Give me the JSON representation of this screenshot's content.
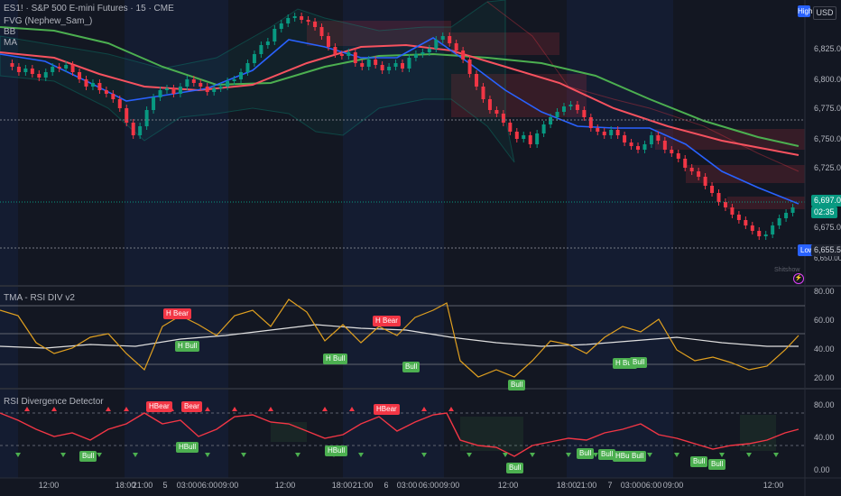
{
  "header": {
    "symbol_line": "ES1! · S&P 500 E-mini Futures · 15 · CME",
    "indicator_1": "FVG (Nephew_Sam_)",
    "indicator_2": "BB",
    "indicator_3": "MA",
    "high_badge": "High",
    "currency_button": "USD"
  },
  "price_axis": {
    "ticks": [
      "6,825.00",
      "6,800.00",
      "6,775.00",
      "6,750.00",
      "6,725.00",
      "6,675.00"
    ],
    "last_price": "6,697.00",
    "countdown": "02:35",
    "low_label": "Low",
    "low_price": "6,655.50",
    "bottom_tick": "6,650.00",
    "last_price_color": "#089981",
    "low_badge_color": "#2962ff"
  },
  "pane_rsi_div": {
    "title": "TMA - RSI DIV v2",
    "ticks": [
      "80.00",
      "60.00",
      "40.00",
      "20.00"
    ],
    "signals": [
      {
        "text": "H Bear",
        "type": "bear"
      },
      {
        "text": "H Bull",
        "type": "bull"
      },
      {
        "text": "H Bear",
        "type": "bear"
      },
      {
        "text": "H Bull",
        "type": "bull"
      },
      {
        "text": "Bull",
        "type": "bull"
      },
      {
        "text": "Bull",
        "type": "bull"
      },
      {
        "text": "H Bull",
        "type": "bull"
      },
      {
        "text": "Bull",
        "type": "bull"
      }
    ]
  },
  "pane_detector": {
    "title": "RSI Divergence Detector",
    "ticks": [
      "80.00",
      "40.00",
      "0.00"
    ],
    "signals": [
      {
        "text": "HBear",
        "type": "bear"
      },
      {
        "text": "Bear",
        "type": "bear"
      },
      {
        "text": "HBear",
        "type": "bear"
      },
      {
        "text": "Bull",
        "type": "bull"
      },
      {
        "text": "HBull",
        "type": "bull"
      },
      {
        "text": "HBull",
        "type": "bull"
      },
      {
        "text": "Bull",
        "type": "bull"
      },
      {
        "text": "Bull",
        "type": "bull"
      },
      {
        "text": "Bull",
        "type": "bull"
      },
      {
        "text": "HBull",
        "type": "bull"
      },
      {
        "text": "Bull",
        "type": "bull"
      },
      {
        "text": "Bull",
        "type": "bull"
      },
      {
        "text": "Bull",
        "type": "bull"
      }
    ]
  },
  "time_axis": [
    "12:00",
    "18:00",
    "21:00",
    "5",
    "03:00",
    "06:00",
    "09:00",
    "12:00",
    "18:00",
    "21:00",
    "6",
    "03:00",
    "06:00",
    "09:00",
    "12:00",
    "18:00",
    "21:00",
    "7",
    "03:00",
    "06:00",
    "09:00",
    "12:00"
  ],
  "watermark": "Shitshow",
  "colors": {
    "background": "#131722",
    "up_candle": "#089981",
    "down_candle": "#f23645",
    "ma_green": "#4caf50",
    "ma_red": "#f7525f",
    "ma_blue": "#2962ff"
  }
}
